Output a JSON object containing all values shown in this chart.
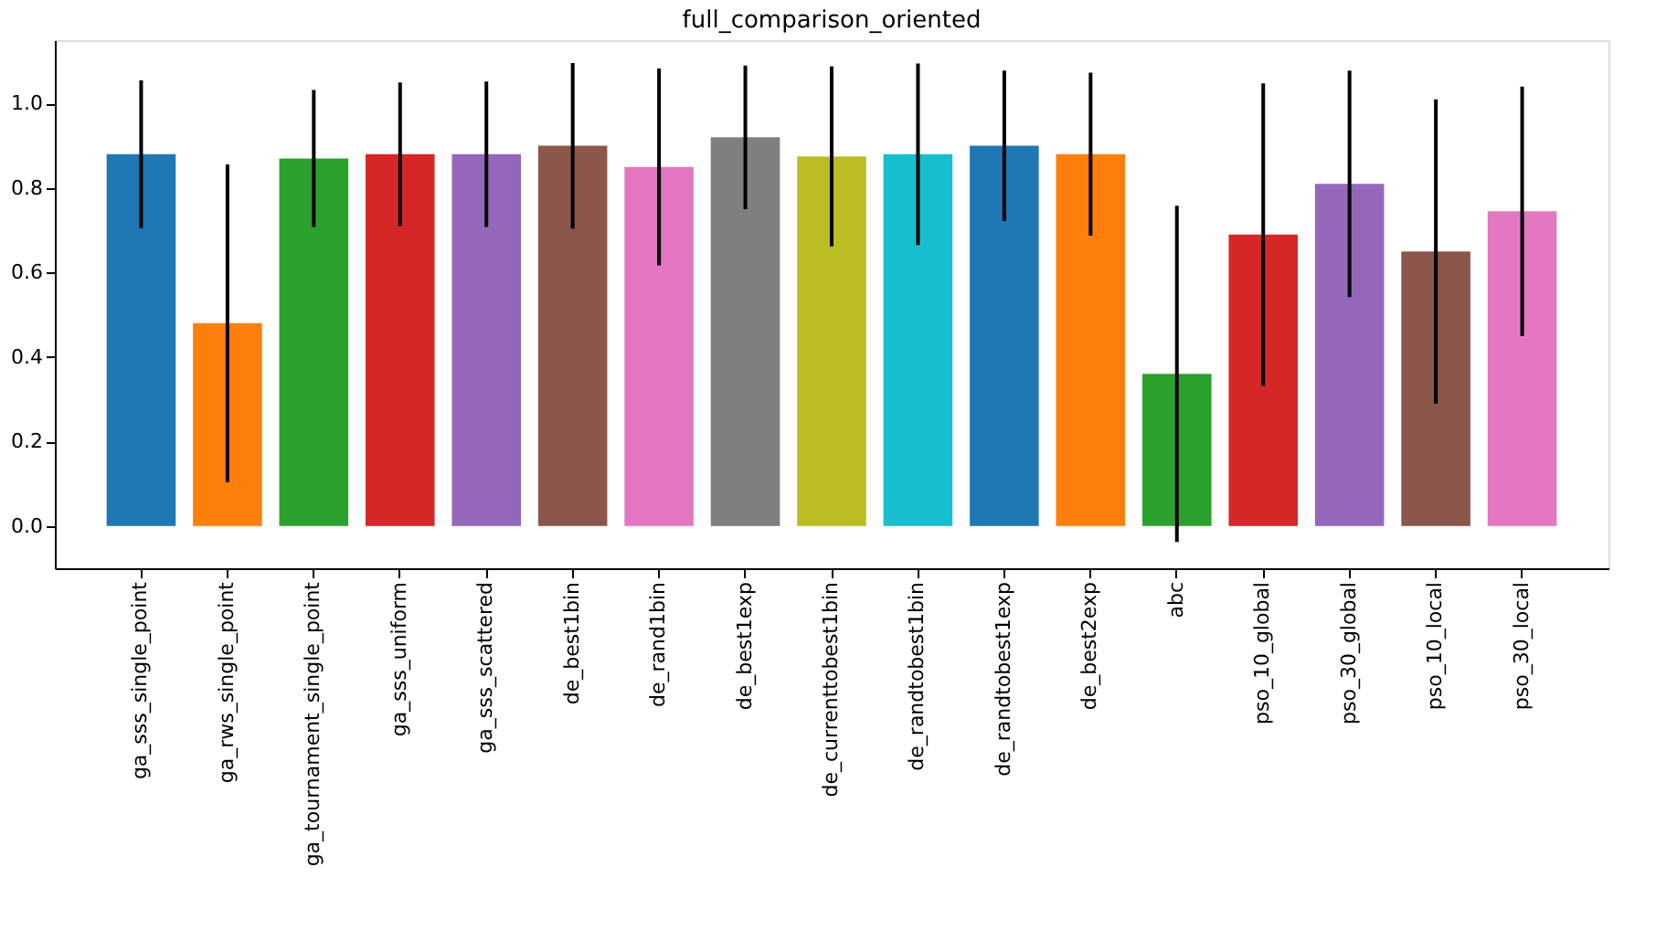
{
  "chart_data": {
    "type": "bar",
    "title": "full_comparison_oriented",
    "categories": [
      "ga_sss_single_point",
      "ga_rws_single_point",
      "ga_tournament_single_point",
      "ga_sss_uniform",
      "ga_sss_scattered",
      "de_best1bin",
      "de_rand1bin",
      "de_best1exp",
      "de_currenttobest1bin",
      "de_randtobest1bin",
      "de_randtobest1exp",
      "de_best2exp",
      "abc",
      "pso_10_global",
      "pso_30_global",
      "pso_10_local",
      "pso_30_local"
    ],
    "values": [
      0.88,
      0.48,
      0.87,
      0.88,
      0.88,
      0.9,
      0.85,
      0.92,
      0.875,
      0.88,
      0.9,
      0.88,
      0.36,
      0.69,
      0.81,
      0.65,
      0.745
    ],
    "errors": [
      0.175,
      0.376,
      0.162,
      0.17,
      0.172,
      0.196,
      0.233,
      0.17,
      0.213,
      0.215,
      0.178,
      0.193,
      0.398,
      0.358,
      0.268,
      0.36,
      0.295
    ],
    "colors": [
      "#1f77b4",
      "#ff7f0e",
      "#2ca02c",
      "#d62728",
      "#9467bd",
      "#8c564b",
      "#e377c2",
      "#7f7f7f",
      "#bcbd22",
      "#17becf",
      "#1f77b4",
      "#ff7f0e",
      "#2ca02c",
      "#d62728",
      "#9467bd",
      "#8c564b",
      "#e377c2"
    ],
    "ylim": [
      -0.1,
      1.15
    ],
    "yticks": [
      {
        "value": 0,
        "label": "0.0"
      },
      0.2,
      0.4,
      0.6,
      0.8,
      {
        "value": 1,
        "label": "1.0"
      }
    ],
    "grid": false
  }
}
